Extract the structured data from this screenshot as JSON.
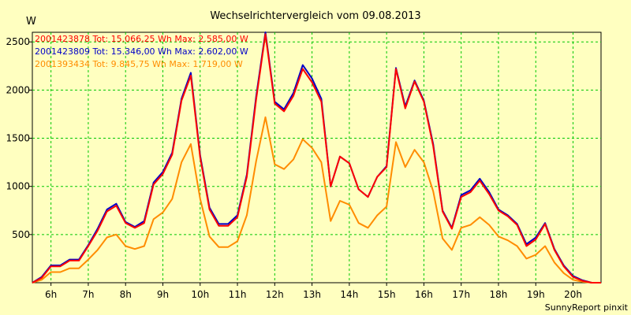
{
  "chart_data": {
    "type": "line",
    "title": "Wechselrichtervergleich vom 09.08.2013",
    "ylabel": "W",
    "xlabel": "",
    "ylim": [
      0,
      2600
    ],
    "xlim": [
      5.5,
      20.75
    ],
    "yticks": [
      500,
      1000,
      1500,
      2000,
      2500
    ],
    "xtick_labels": [
      "6h",
      "7h",
      "8h",
      "9h",
      "10h",
      "11h",
      "12h",
      "13h",
      "14h",
      "15h",
      "16h",
      "17h",
      "18h",
      "19h",
      "20h"
    ],
    "grid": true,
    "credit": "SunnyReport pinxit",
    "x": [
      5.5,
      5.75,
      6,
      6.25,
      6.5,
      6.75,
      7,
      7.25,
      7.5,
      7.75,
      8,
      8.25,
      8.5,
      8.75,
      9,
      9.25,
      9.5,
      9.75,
      10,
      10.25,
      10.5,
      10.75,
      11,
      11.25,
      11.5,
      11.75,
      12,
      12.25,
      12.5,
      12.75,
      13,
      13.25,
      13.5,
      13.75,
      14,
      14.25,
      14.5,
      14.75,
      15,
      15.25,
      15.5,
      15.75,
      16,
      16.25,
      16.5,
      16.75,
      17,
      17.25,
      17.5,
      17.75,
      18,
      18.25,
      18.5,
      18.75,
      19,
      19.25,
      19.5,
      19.75,
      20,
      20.25,
      20.5,
      20.75
    ],
    "series": [
      {
        "name": "2001423878",
        "legend": "2001423878 Tot: 15.066,25 Wh Max: 2.585,00 W",
        "color": "#ff0000",
        "values": [
          0,
          50,
          170,
          170,
          230,
          230,
          380,
          540,
          740,
          800,
          620,
          570,
          620,
          1020,
          1130,
          1330,
          1890,
          2150,
          1300,
          760,
          590,
          590,
          680,
          1100,
          1900,
          2580,
          1860,
          1780,
          1940,
          2220,
          2080,
          1880,
          1000,
          1310,
          1240,
          970,
          890,
          1100,
          1200,
          2220,
          1810,
          2090,
          1880,
          1420,
          740,
          560,
          890,
          940,
          1060,
          920,
          750,
          690,
          600,
          380,
          450,
          610,
          340,
          170,
          60,
          20,
          0,
          0
        ]
      },
      {
        "name": "2001423809",
        "legend": "2001423809 Tot: 15.346,00 Wh Max: 2.602,00 W",
        "color": "#0000c8",
        "values": [
          0,
          60,
          180,
          180,
          240,
          240,
          390,
          560,
          760,
          820,
          630,
          580,
          640,
          1040,
          1150,
          1350,
          1910,
          2180,
          1320,
          780,
          610,
          610,
          700,
          1120,
          1930,
          2600,
          1880,
          1800,
          1970,
          2260,
          2120,
          1910,
          1000,
          1310,
          1240,
          970,
          890,
          1100,
          1210,
          2230,
          1830,
          2100,
          1890,
          1440,
          750,
          570,
          910,
          960,
          1080,
          940,
          760,
          700,
          610,
          400,
          470,
          620,
          350,
          180,
          70,
          25,
          0,
          0
        ]
      },
      {
        "name": "2001393434",
        "legend": "2001393434 Tot: 9.845,75 Wh Max: 1.719,00 W",
        "color": "#ff8c00",
        "values": [
          0,
          30,
          110,
          110,
          150,
          150,
          240,
          340,
          470,
          500,
          380,
          350,
          380,
          660,
          730,
          870,
          1250,
          1440,
          870,
          480,
          370,
          370,
          430,
          700,
          1260,
          1719,
          1230,
          1180,
          1280,
          1490,
          1400,
          1250,
          640,
          850,
          810,
          620,
          570,
          700,
          790,
          1460,
          1200,
          1380,
          1250,
          950,
          460,
          340,
          570,
          600,
          680,
          600,
          480,
          440,
          380,
          250,
          290,
          380,
          210,
          100,
          30,
          10,
          0,
          0
        ]
      }
    ]
  }
}
